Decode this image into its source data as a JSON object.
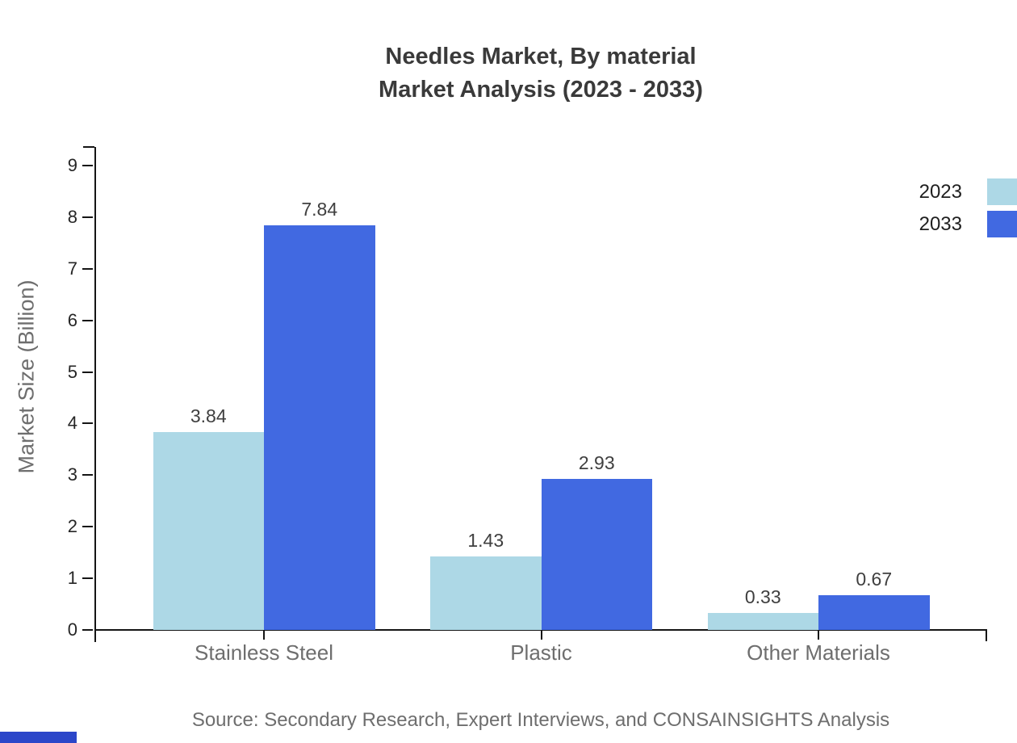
{
  "title": {
    "line1": "Needles Market, By material",
    "line2": "Market Analysis (2023 - 2033)"
  },
  "source_text": "Source: Secondary Research, Expert Interviews, and CONSAINSIGHTS Analysis",
  "colors": {
    "series_2023": "#ADD8E6",
    "series_2033": "#4169E1",
    "axis": "#151515",
    "title_text": "#3A3A3A",
    "muted_text": "#6E6E6E",
    "tick_text": "#262626",
    "corner_strip": "#2B46C9"
  },
  "chart_data": {
    "type": "bar",
    "title": "Needles Market, By material Market Analysis (2023 - 2033)",
    "categories": [
      "Stainless Steel",
      "Plastic",
      "Other Materials"
    ],
    "series": [
      {
        "name": "2023",
        "color": "#ADD8E6",
        "values": [
          3.84,
          1.43,
          0.33
        ]
      },
      {
        "name": "2033",
        "color": "#4169E1",
        "values": [
          7.84,
          2.93,
          0.67
        ]
      }
    ],
    "xlabel": "",
    "ylabel": "Market Size (Billion)",
    "ylim": [
      0,
      9
    ],
    "ytick_step": 1,
    "grid": false,
    "legend_position": "top-right",
    "value_labels": true
  }
}
